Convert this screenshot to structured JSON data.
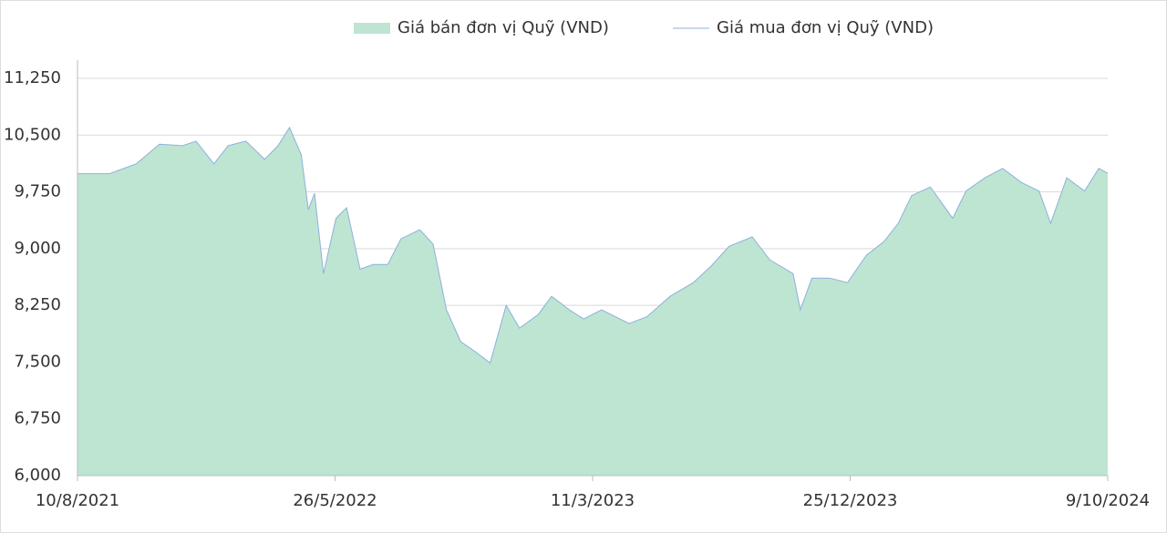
{
  "chart_data": {
    "type": "area",
    "x": [
      "10/8/2021",
      "15/9/2021",
      "15/10/2021",
      "10/11/2021",
      "6/12/2021",
      "21/12/2021",
      "10/1/2022",
      "26/1/2022",
      "15/2/2022",
      "8/3/2022",
      "23/3/2022",
      "5/4/2022",
      "18/4/2022",
      "26/4/2022",
      "3/5/2022",
      "13/5/2022",
      "27/5/2022",
      "8/6/2022",
      "23/6/2022",
      "8/7/2022",
      "24/7/2022",
      "8/8/2022",
      "29/8/2022",
      "13/9/2022",
      "28/9/2022",
      "14/10/2022",
      "29/10/2022",
      "16/11/2022",
      "4/12/2022",
      "19/12/2022",
      "9/1/2023",
      "24/1/2023",
      "13/2/2023",
      "1/3/2023",
      "21/3/2023",
      "21/4/2023",
      "11/5/2023",
      "6/6/2023",
      "2/7/2023",
      "22/7/2023",
      "11/8/2023",
      "6/9/2023",
      "26/9/2023",
      "22/10/2023",
      "30/10/2023",
      "12/11/2023",
      "2/12/2023",
      "22/12/2023",
      "12/1/2024",
      "1/2/2024",
      "17/2/2024",
      "3/3/2024",
      "24/3/2024",
      "18/4/2024",
      "3/5/2024",
      "24/5/2024",
      "13/6/2024",
      "4/7/2024",
      "24/7/2024",
      "6/8/2024",
      "24/8/2024",
      "13/9/2024",
      "29/9/2024",
      "9/10/2024"
    ],
    "series": [
      {
        "name": "Giá bán đơn vị Quỹ (VND)",
        "style": "area",
        "color": "#bde5d2",
        "values": [
          9990,
          9990,
          10120,
          10380,
          10360,
          10420,
          10120,
          10360,
          10420,
          10180,
          10360,
          10600,
          10240,
          9515,
          9730,
          8670,
          9400,
          9540,
          8730,
          8790,
          8790,
          9130,
          9250,
          9060,
          8190,
          7770,
          7650,
          7490,
          8250,
          7950,
          8130,
          8370,
          8190,
          8070,
          8190,
          8010,
          8100,
          8370,
          8550,
          8770,
          9030,
          9155,
          8850,
          8670,
          8190,
          8610,
          8610,
          8550,
          8910,
          9095,
          9335,
          9700,
          9815,
          9400,
          9760,
          9935,
          10060,
          9875,
          9760,
          9335,
          9935,
          9760,
          10060,
          9995
        ]
      },
      {
        "name": "Giá mua đơn vị Quỹ (VND)",
        "style": "line",
        "color": "#8fb0dc",
        "values": [
          9990,
          9990,
          10120,
          10380,
          10360,
          10420,
          10120,
          10360,
          10420,
          10180,
          10360,
          10600,
          10240,
          9515,
          9730,
          8670,
          9400,
          9540,
          8730,
          8790,
          8790,
          9130,
          9250,
          9060,
          8190,
          7770,
          7650,
          7490,
          8250,
          7950,
          8130,
          8370,
          8190,
          8070,
          8190,
          8010,
          8100,
          8370,
          8550,
          8770,
          9030,
          9155,
          8850,
          8670,
          8190,
          8610,
          8610,
          8550,
          8910,
          9095,
          9335,
          9700,
          9815,
          9400,
          9760,
          9935,
          10060,
          9875,
          9760,
          9335,
          9935,
          9760,
          10060,
          9995
        ]
      }
    ],
    "xlim": [
      "10/8/2021",
      "9/10/2024"
    ],
    "xticks": [
      "10/8/2021",
      "26/5/2022",
      "11/3/2023",
      "25/12/2023",
      "9/10/2024"
    ],
    "ylim": [
      6000,
      11250
    ],
    "yticks": [
      {
        "value": 6000,
        "label": "6,000"
      },
      {
        "value": 6750,
        "label": "6,750"
      },
      {
        "value": 7500,
        "label": "7,500"
      },
      {
        "value": 8250,
        "label": "8,250"
      },
      {
        "value": 9000,
        "label": "9,000"
      },
      {
        "value": 9750,
        "label": "9,750"
      },
      {
        "value": 10500,
        "label": "10,500"
      },
      {
        "value": 11250,
        "label": "11,250"
      }
    ],
    "grid": true
  }
}
